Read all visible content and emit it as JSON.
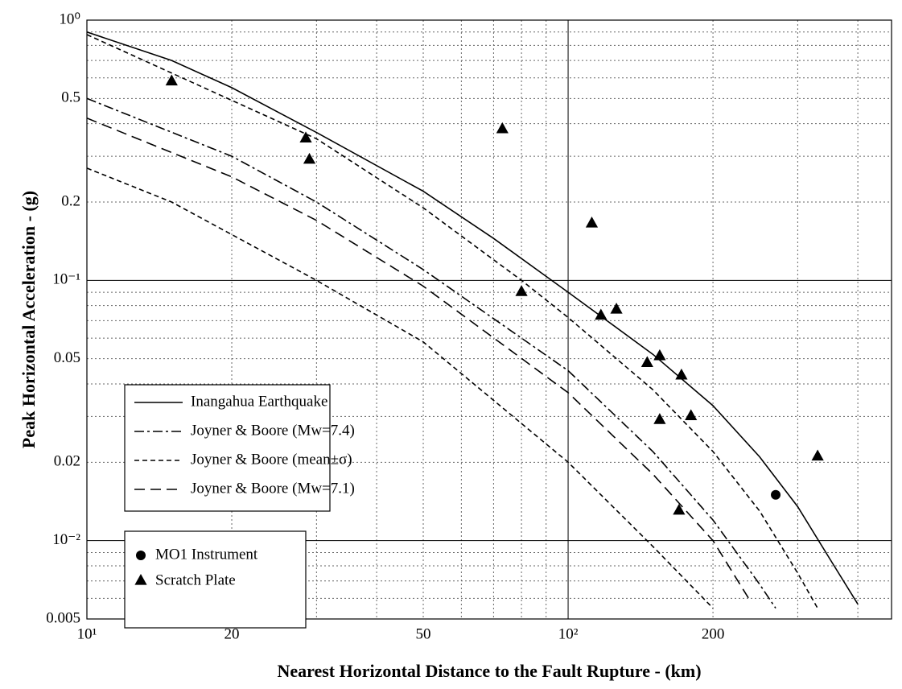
{
  "chart_data": {
    "type": "line",
    "xlabel": "Nearest Horizontal Distance to the Fault Rupture - (km)",
    "ylabel": "Peak Horizontal Acceleration - (g)",
    "xscale": "log",
    "yscale": "log",
    "xlim": [
      10,
      470
    ],
    "ylim": [
      0.005,
      1
    ],
    "xticks": [
      {
        "value": 10,
        "label": "10¹"
      },
      20,
      50,
      {
        "value": 100,
        "label": "10²"
      },
      200
    ],
    "yticks": [
      {
        "value": 1,
        "label": "10⁰"
      },
      0.5,
      0.2,
      {
        "value": 0.1,
        "label": "10⁻¹"
      },
      0.05,
      0.02,
      {
        "value": 0.01,
        "label": "10⁻²"
      },
      0.005
    ],
    "xminor": [
      30,
      40,
      60,
      70,
      80,
      90,
      300,
      400
    ],
    "yminor": [
      0.9,
      0.8,
      0.7,
      0.6,
      0.4,
      0.3,
      0.09,
      0.08,
      0.07,
      0.06,
      0.04,
      0.03,
      0.009,
      0.008,
      0.007,
      0.006
    ],
    "grid": true,
    "legend": "lower left",
    "series": [
      {
        "name": "Inangahua Earthquake",
        "color": "#000000",
        "style": "solid",
        "x": [
          10,
          15,
          20,
          30,
          50,
          70,
          100,
          150,
          200,
          250,
          300,
          350,
          400
        ],
        "values": [
          0.9,
          0.7,
          0.55,
          0.37,
          0.22,
          0.145,
          0.09,
          0.052,
          0.033,
          0.021,
          0.0135,
          0.0085,
          0.0057
        ]
      },
      {
        "name": "Joyner & Boore (Mw=7.4)",
        "color": "#000000",
        "style": "dashdot",
        "x": [
          10,
          20,
          30,
          50,
          100,
          150,
          200,
          250,
          270
        ],
        "values": [
          0.5,
          0.3,
          0.2,
          0.11,
          0.045,
          0.022,
          0.012,
          0.0068,
          0.0055
        ]
      },
      {
        "name": "Joyner & Boore (mean±σ)",
        "color": "#000000",
        "style": "shortdash",
        "x": [
          10,
          30,
          50,
          80,
          100,
          150,
          200,
          250,
          300,
          330,
          null,
          10,
          15,
          20,
          30,
          50,
          100,
          150,
          200
        ],
        "values": [
          0.88,
          0.35,
          0.19,
          0.1,
          0.072,
          0.038,
          0.022,
          0.013,
          0.0075,
          0.0055,
          null,
          0.27,
          0.2,
          0.15,
          0.1,
          0.058,
          0.02,
          0.0095,
          0.0055
        ]
      },
      {
        "name": "Joyner & Boore (Mw=7.1)",
        "color": "#000000",
        "style": "longdash",
        "x": [
          10,
          20,
          30,
          50,
          100,
          150,
          200,
          240
        ],
        "values": [
          0.42,
          0.25,
          0.17,
          0.095,
          0.037,
          0.018,
          0.01,
          0.0058
        ]
      },
      {
        "name": "MO1 Instrument",
        "color": "#000000",
        "marker": "circle",
        "x": [
          270
        ],
        "values": [
          0.015
        ]
      },
      {
        "name": "Scratch Plate",
        "color": "#000000",
        "marker": "triangle",
        "x": [
          15,
          28.5,
          29,
          73,
          80,
          112,
          117,
          126,
          146,
          155,
          155,
          172,
          180,
          170,
          330
        ],
        "values": [
          0.58,
          0.35,
          0.29,
          0.38,
          0.09,
          0.165,
          0.073,
          0.077,
          0.048,
          0.051,
          0.029,
          0.043,
          0.03,
          0.013,
          0.021
        ]
      }
    ]
  }
}
